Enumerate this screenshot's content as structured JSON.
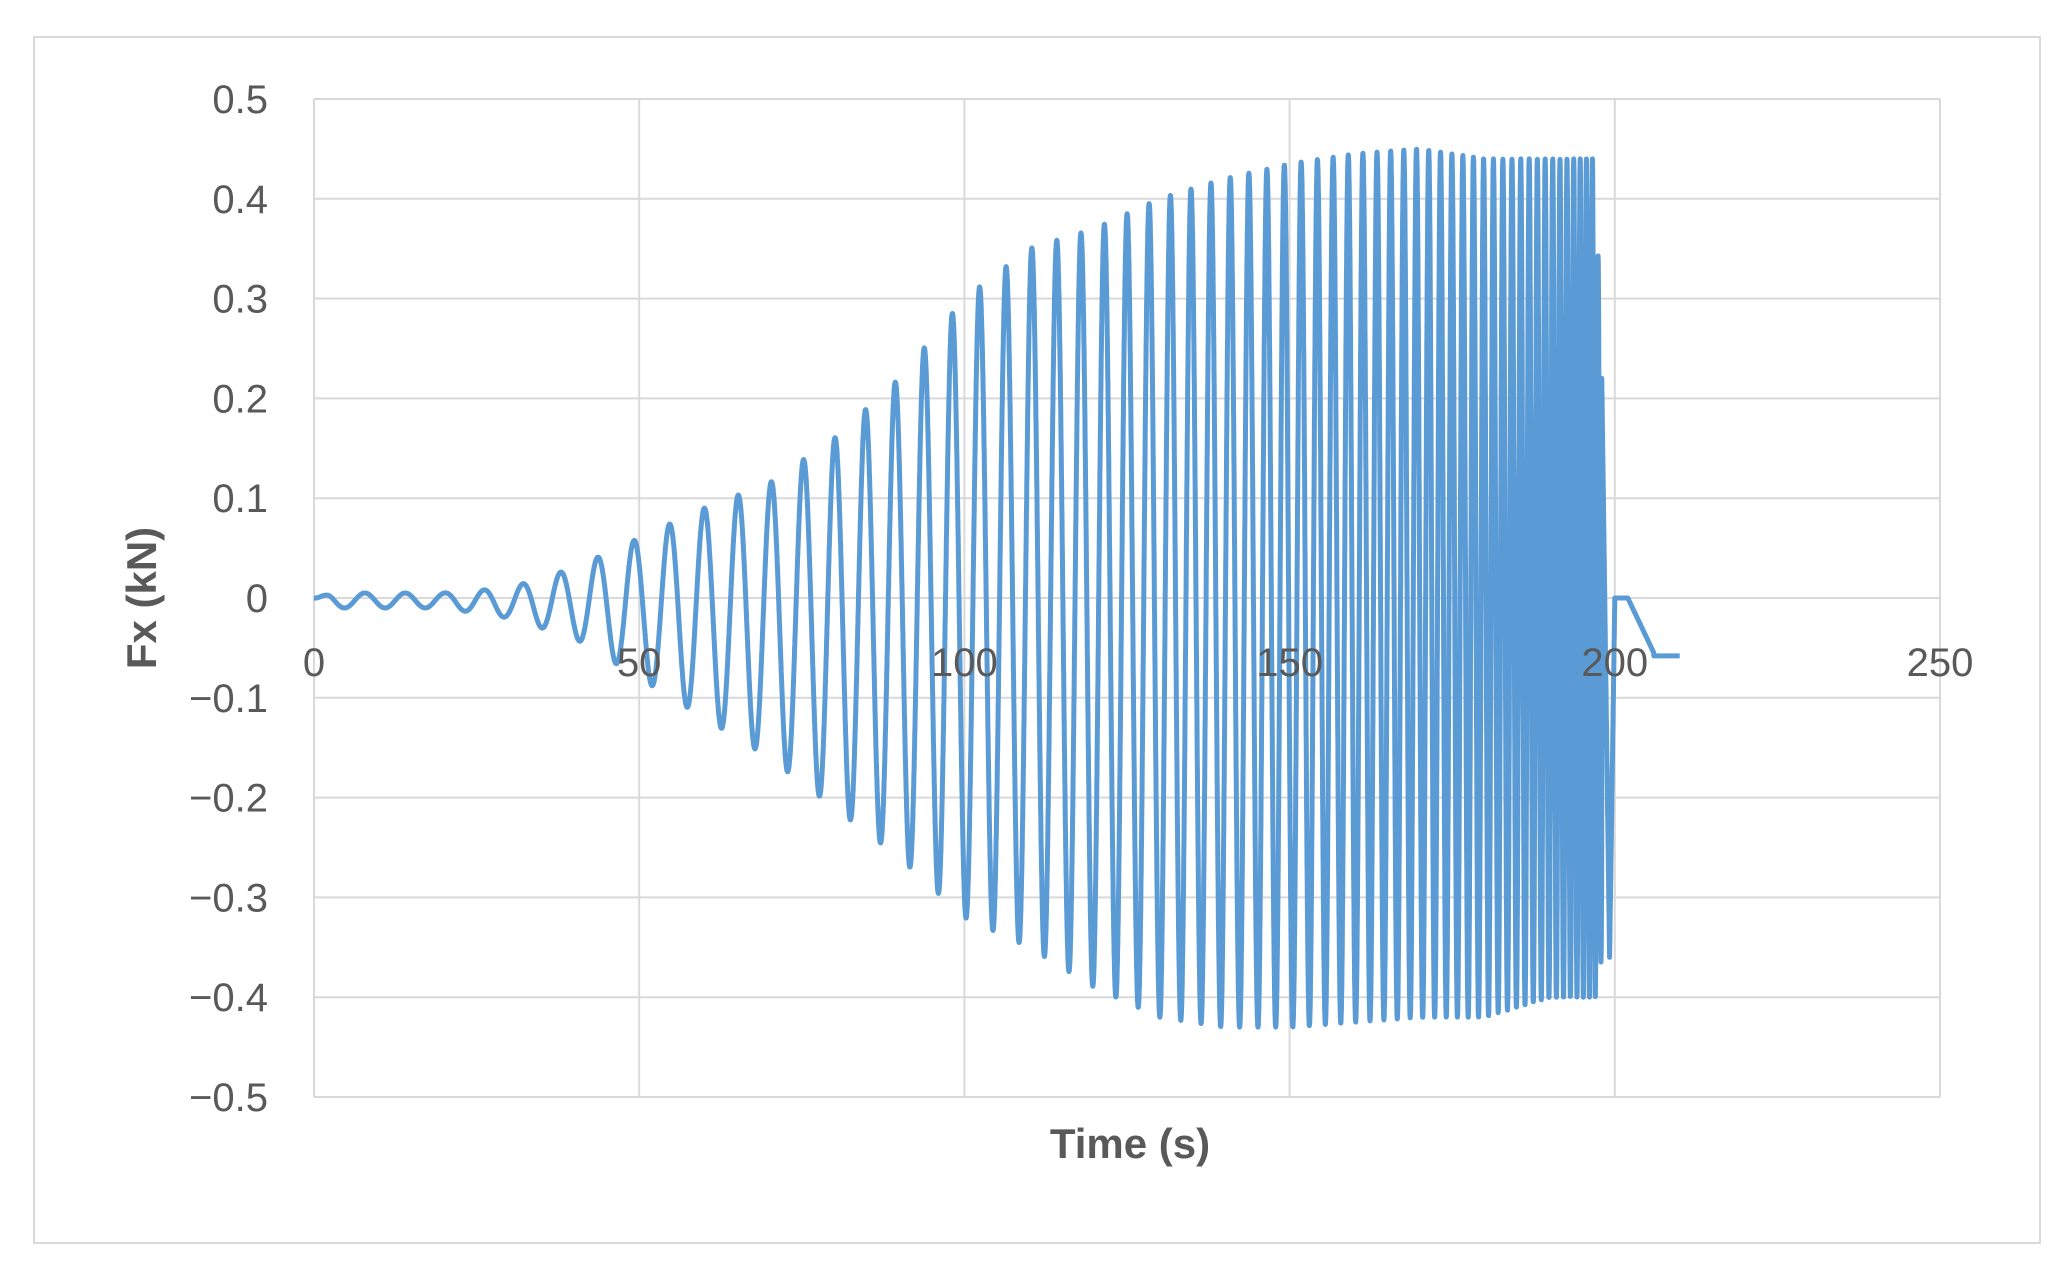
{
  "chart_data": {
    "type": "line",
    "title": "",
    "xlabel": "Time (s)",
    "ylabel": "Fx (kN)",
    "xlim": [
      0,
      250
    ],
    "ylim": [
      -0.5,
      0.5
    ],
    "x_ticks": [
      "0",
      "50",
      "100",
      "150",
      "200",
      "250"
    ],
    "y_ticks": [
      "0.5",
      "0.4",
      "0.3",
      "0.2",
      "0.1",
      "0",
      "−0.1",
      "−0.2",
      "−0.3",
      "−0.4",
      "−0.5"
    ],
    "grid": true,
    "legend": "none",
    "series": [
      {
        "color": "#5b9bd5",
        "description_points": {
          "t": [
            0,
            3,
            10,
            20,
            30,
            40,
            50,
            60,
            70,
            80,
            90,
            100,
            110,
            120,
            130,
            140,
            150,
            160,
            170,
            180,
            190,
            197,
            198,
            200,
            202,
            205,
            210
          ],
          "envelope_max": [
            0,
            0.005,
            0.005,
            0.005,
            0.01,
            0.03,
            0.06,
            0.09,
            0.115,
            0.16,
            0.22,
            0.3,
            0.35,
            0.37,
            0.4,
            0.42,
            0.435,
            0.445,
            0.45,
            0.44,
            0.44,
            0.44,
            0.22,
            0.0,
            -0.01,
            -0.05,
            -0.06
          ],
          "envelope_min": [
            0,
            -0.01,
            -0.01,
            -0.01,
            -0.02,
            -0.04,
            -0.08,
            -0.12,
            -0.16,
            -0.21,
            -0.26,
            -0.32,
            -0.35,
            -0.39,
            -0.42,
            -0.43,
            -0.43,
            -0.425,
            -0.42,
            -0.42,
            -0.4,
            -0.4,
            -0.36,
            0.0,
            -0.01,
            -0.05,
            -0.06
          ]
        }
      }
    ]
  }
}
